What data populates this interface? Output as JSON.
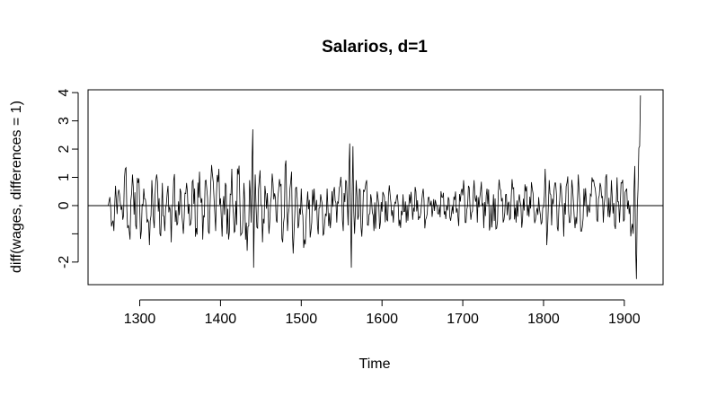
{
  "chart_data": {
    "type": "line",
    "title": "Salarios, d=1",
    "xlabel": "Time",
    "ylabel": "diff(wages, differences = 1)",
    "xlim": [
      1236,
      1948
    ],
    "ylim": [
      -2.8,
      4.1
    ],
    "x_ticks": [
      1300,
      1400,
      1500,
      1600,
      1700,
      1800,
      1900
    ],
    "y_ticks": [
      -2,
      0,
      1,
      2,
      3,
      4
    ],
    "x_tick_labels": [
      "1300",
      "1400",
      "1500",
      "1600",
      "1700",
      "1800",
      "1900"
    ],
    "y_tick_labels": [
      "-2",
      "0",
      "1",
      "2",
      "3",
      "4"
    ],
    "hline": 0,
    "grid": false,
    "legend": "none",
    "series": [
      {
        "x_start": 1261,
        "x_step": 1,
        "keypoints": [
          [
            1261,
            0.0
          ],
          [
            1263,
            0.3
          ],
          [
            1266,
            -0.6
          ],
          [
            1268,
            -0.9
          ],
          [
            1270,
            0.7
          ],
          [
            1272,
            -0.3
          ],
          [
            1275,
            0.4
          ],
          [
            1279,
            -0.5
          ],
          [
            1282,
            1.3
          ],
          [
            1285,
            -0.8
          ],
          [
            1288,
            -1.2
          ],
          [
            1291,
            1.1
          ],
          [
            1295,
            -0.7
          ],
          [
            1298,
            0.8
          ],
          [
            1302,
            -0.9
          ],
          [
            1305,
            0.6
          ],
          [
            1309,
            -0.6
          ],
          [
            1312,
            -1.4
          ],
          [
            1315,
            0.9
          ],
          [
            1318,
            -0.8
          ],
          [
            1321,
            1.1
          ],
          [
            1325,
            -1.0
          ],
          [
            1328,
            0.8
          ],
          [
            1331,
            -0.9
          ],
          [
            1335,
            0.7
          ],
          [
            1339,
            -1.3
          ],
          [
            1342,
            0.9
          ],
          [
            1346,
            -0.7
          ],
          [
            1350,
            0.6
          ],
          [
            1354,
            -1.0
          ],
          [
            1358,
            0.8
          ],
          [
            1362,
            -0.7
          ],
          [
            1366,
            0.9
          ],
          [
            1370,
            -0.8
          ],
          [
            1374,
            1.2
          ],
          [
            1378,
            -1.2
          ],
          [
            1382,
            0.9
          ],
          [
            1386,
            -1.0
          ],
          [
            1390,
            1.1
          ],
          [
            1394,
            -0.9
          ],
          [
            1398,
            1.3
          ],
          [
            1402,
            -1.1
          ],
          [
            1406,
            0.8
          ],
          [
            1410,
            -1.2
          ],
          [
            1414,
            1.3
          ],
          [
            1418,
            -0.9
          ],
          [
            1422,
            1.1
          ],
          [
            1426,
            -1.0
          ],
          [
            1429,
            0.8
          ],
          [
            1433,
            -1.6
          ],
          [
            1436,
            0.9
          ],
          [
            1438,
            -0.6
          ],
          [
            1440,
            2.7
          ],
          [
            1441,
            -2.2
          ],
          [
            1443,
            1.1
          ],
          [
            1446,
            -0.8
          ],
          [
            1448,
            0.9
          ],
          [
            1452,
            -1.3
          ],
          [
            1455,
            0.7
          ],
          [
            1460,
            -1.0
          ],
          [
            1465,
            0.8
          ],
          [
            1470,
            -0.6
          ],
          [
            1474,
            0.7
          ],
          [
            1477,
            -1.3
          ],
          [
            1479,
            -0.4
          ],
          [
            1481,
            1.6
          ],
          [
            1483,
            -0.9
          ],
          [
            1486,
            0.6
          ],
          [
            1488,
            1.2
          ],
          [
            1490,
            -1.7
          ],
          [
            1493,
            0.6
          ],
          [
            1496,
            -0.8
          ],
          [
            1500,
            0.6
          ],
          [
            1504,
            -1.2
          ],
          [
            1508,
            0.5
          ],
          [
            1512,
            -0.9
          ],
          [
            1516,
            0.6
          ],
          [
            1520,
            -0.7
          ],
          [
            1524,
            0.4
          ],
          [
            1528,
            -1.0
          ],
          [
            1532,
            0.6
          ],
          [
            1536,
            -0.8
          ],
          [
            1540,
            0.5
          ],
          [
            1544,
            -0.6
          ],
          [
            1548,
            0.7
          ],
          [
            1552,
            -0.9
          ],
          [
            1555,
            0.9
          ],
          [
            1558,
            -0.7
          ],
          [
            1560,
            2.2
          ],
          [
            1562,
            -2.2
          ],
          [
            1564,
            2.1
          ],
          [
            1566,
            -1.0
          ],
          [
            1568,
            0.9
          ],
          [
            1570,
            -0.5
          ],
          [
            1572,
            0.6
          ],
          [
            1575,
            -1.1
          ],
          [
            1578,
            0.5
          ],
          [
            1580,
            0.8
          ],
          [
            1583,
            -0.7
          ],
          [
            1586,
            0.4
          ],
          [
            1590,
            -0.9
          ],
          [
            1594,
            0.5
          ],
          [
            1598,
            -0.6
          ],
          [
            1602,
            0.4
          ],
          [
            1606,
            -0.5
          ],
          [
            1610,
            0.4
          ],
          [
            1614,
            -0.6
          ],
          [
            1618,
            0.3
          ],
          [
            1622,
            -0.5
          ],
          [
            1626,
            0.4
          ],
          [
            1630,
            -0.6
          ],
          [
            1634,
            0.4
          ],
          [
            1638,
            -0.5
          ],
          [
            1642,
            0.5
          ],
          [
            1646,
            -0.4
          ],
          [
            1650,
            0.4
          ],
          [
            1654,
            -0.5
          ],
          [
            1658,
            0.3
          ],
          [
            1662,
            -0.4
          ],
          [
            1666,
            0.2
          ],
          [
            1670,
            -0.3
          ],
          [
            1674,
            0.3
          ],
          [
            1678,
            -0.2
          ],
          [
            1682,
            0.3
          ],
          [
            1686,
            -0.3
          ],
          [
            1690,
            0.2
          ],
          [
            1694,
            -0.4
          ],
          [
            1698,
            0.5
          ],
          [
            1701,
            0.9
          ],
          [
            1704,
            -0.6
          ],
          [
            1707,
            0.7
          ],
          [
            1710,
            -0.5
          ],
          [
            1714,
            0.9
          ],
          [
            1718,
            -0.6
          ],
          [
            1722,
            0.5
          ],
          [
            1726,
            -0.8
          ],
          [
            1730,
            0.6
          ],
          [
            1734,
            -0.7
          ],
          [
            1738,
            0.4
          ],
          [
            1742,
            -0.8
          ],
          [
            1746,
            0.6
          ],
          [
            1750,
            -0.6
          ],
          [
            1754,
            0.4
          ],
          [
            1758,
            -0.5
          ],
          [
            1762,
            0.6
          ],
          [
            1766,
            -0.6
          ],
          [
            1770,
            0.4
          ],
          [
            1774,
            -0.5
          ],
          [
            1778,
            0.5
          ],
          [
            1782,
            -0.4
          ],
          [
            1786,
            0.6
          ],
          [
            1790,
            -0.5
          ],
          [
            1794,
            0.3
          ],
          [
            1798,
            -0.6
          ],
          [
            1802,
            1.3
          ],
          [
            1804,
            -1.4
          ],
          [
            1807,
            0.9
          ],
          [
            1810,
            -0.7
          ],
          [
            1814,
            0.8
          ],
          [
            1818,
            -0.9
          ],
          [
            1822,
            0.6
          ],
          [
            1825,
            -1.1
          ],
          [
            1829,
            0.8
          ],
          [
            1832,
            -0.6
          ],
          [
            1836,
            0.6
          ],
          [
            1839,
            -0.8
          ],
          [
            1843,
            1.1
          ],
          [
            1846,
            -0.9
          ],
          [
            1850,
            0.6
          ],
          [
            1854,
            -0.4
          ],
          [
            1858,
            0.4
          ],
          [
            1862,
            0.9
          ],
          [
            1866,
            -0.5
          ],
          [
            1870,
            0.8
          ],
          [
            1874,
            -0.6
          ],
          [
            1877,
            1.0
          ],
          [
            1880,
            -0.4
          ],
          [
            1884,
            0.9
          ],
          [
            1888,
            -0.7
          ],
          [
            1891,
            1.0
          ],
          [
            1894,
            -0.6
          ],
          [
            1897,
            0.8
          ],
          [
            1900,
            -0.5
          ],
          [
            1903,
            0.6
          ],
          [
            1906,
            -0.3
          ],
          [
            1909,
            -0.8
          ],
          [
            1911,
            -1.0
          ],
          [
            1913,
            1.4
          ],
          [
            1915,
            -2.6
          ],
          [
            1917,
            0.6
          ],
          [
            1919,
            2.1
          ],
          [
            1920,
            3.9
          ]
        ]
      }
    ]
  }
}
